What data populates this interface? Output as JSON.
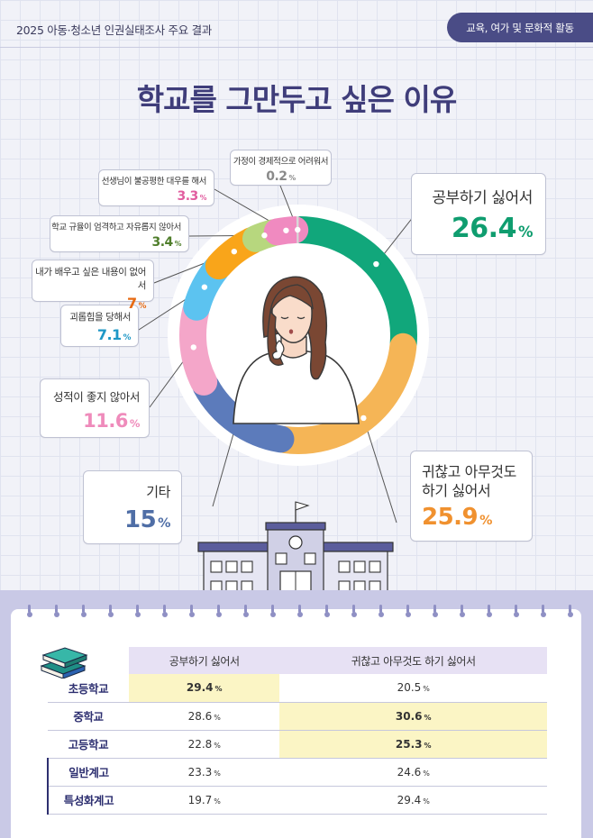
{
  "header": {
    "left_title": "2025 아동·청소년 인권실태조사 주요 결과",
    "category_tag": "교육, 여가 및 문화적 활동"
  },
  "main_title": "학교를 그만두고 싶은 이유",
  "colors": {
    "accent_purple": "#4a4c86",
    "title_color": "#3f3d7a"
  },
  "chart_data": {
    "type": "pie",
    "style": "donut",
    "title": "학교를 그만두고 싶은 이유",
    "unit": "%",
    "slices": [
      {
        "label": "공부하기 싫어서",
        "value": 26.4,
        "color": "#11a77b",
        "value_color": "#0f9d6f"
      },
      {
        "label": "귀찮고 아무것도 하기 싫어서",
        "value": 25.9,
        "color": "#f5b556",
        "value_color": "#f0912f"
      },
      {
        "label": "기타",
        "value": 15.0,
        "color": "#5c7bbb",
        "value_color": "#4f6ea6"
      },
      {
        "label": "성적이 좋지 않아서",
        "value": 11.6,
        "color": "#f4a6c9",
        "value_color": "#ef8bbb"
      },
      {
        "label": "괴롭힘을 당해서",
        "value": 7.1,
        "color": "#5cc3f0",
        "value_color": "#1e97c6"
      },
      {
        "label": "내가 배우고 싶은 내용이 없어서",
        "value": 7.0,
        "color": "#f9a51a",
        "value_color": "#e76a12"
      },
      {
        "label": "학교 규율이 엄격하고 자유롭지 않아서",
        "value": 3.4,
        "color": "#b7d77e",
        "value_color": "#4f7e2b"
      },
      {
        "label": "선생님이 불공평한 대우를 해서",
        "value": 3.3,
        "color": "#f08ac0",
        "value_color": "#e15d9f"
      },
      {
        "label": "가정이 경제적으로 어려워서",
        "value": 0.2,
        "color": "#d7d7d7",
        "value_color": "#8a8a8a"
      }
    ]
  },
  "table": {
    "columns": [
      "공부하기 싫어서",
      "귀찮고 아무것도 하기 싫어서"
    ],
    "unit": "%",
    "rows": [
      {
        "label": "초등학교",
        "values": [
          "29.4",
          "20.5"
        ],
        "highlight": 0,
        "sub": false
      },
      {
        "label": "중학교",
        "values": [
          "28.6",
          "30.6"
        ],
        "highlight": 1,
        "sub": false
      },
      {
        "label": "고등학교",
        "values": [
          "22.8",
          "25.3"
        ],
        "highlight": 1,
        "sub": false
      },
      {
        "label": "일반계고",
        "values": [
          "23.3",
          "24.6"
        ],
        "highlight": -1,
        "sub": true
      },
      {
        "label": "특성화계고",
        "values": [
          "19.7",
          "29.4"
        ],
        "highlight": -1,
        "sub": true
      }
    ]
  }
}
